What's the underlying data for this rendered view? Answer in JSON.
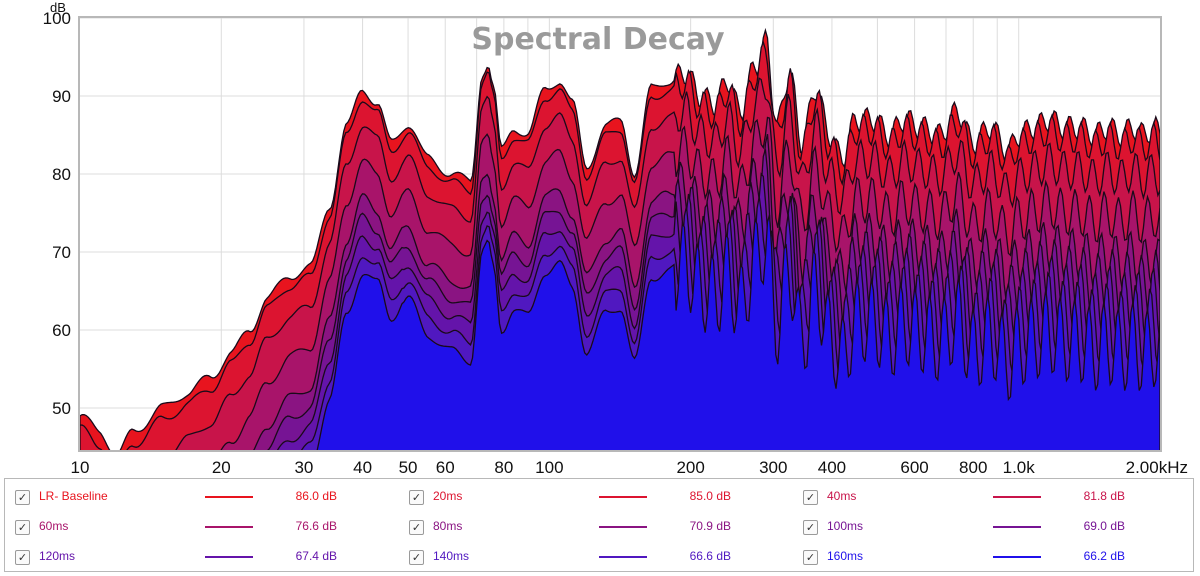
{
  "chart_data": {
    "type": "area",
    "title": "Spectral Decay",
    "ylabel": "dB",
    "y_ticks": [
      "100",
      "90",
      "80",
      "70",
      "60",
      "50"
    ],
    "ylim": [
      45,
      100
    ],
    "x_scale": "log",
    "xlim_hz": [
      10,
      2000
    ],
    "x_ticks": [
      {
        "label": "10",
        "hz": 10
      },
      {
        "label": "20",
        "hz": 20
      },
      {
        "label": "30",
        "hz": 30
      },
      {
        "label": "40",
        "hz": 40
      },
      {
        "label": "50",
        "hz": 50
      },
      {
        "label": "60",
        "hz": 60
      },
      {
        "label": "80",
        "hz": 80
      },
      {
        "label": "100",
        "hz": 100
      },
      {
        "label": "200",
        "hz": 200
      },
      {
        "label": "300",
        "hz": 300
      },
      {
        "label": "400",
        "hz": 400
      },
      {
        "label": "600",
        "hz": 600
      },
      {
        "label": "800",
        "hz": 800
      },
      {
        "label": "1.0k",
        "hz": 1000
      },
      {
        "label": "2.00kHz",
        "hz": 2000
      }
    ],
    "grid": true,
    "baseline_curve": [
      [
        10,
        49
      ],
      [
        11,
        47
      ],
      [
        12,
        44
      ],
      [
        13,
        47
      ],
      [
        15,
        50
      ],
      [
        17,
        52
      ],
      [
        19,
        54
      ],
      [
        21,
        57
      ],
      [
        23,
        60
      ],
      [
        25,
        64
      ],
      [
        28,
        67
      ],
      [
        31,
        68
      ],
      [
        34,
        76
      ],
      [
        37,
        86
      ],
      [
        40,
        91
      ],
      [
        43,
        89
      ],
      [
        46,
        84
      ],
      [
        50,
        86.5
      ],
      [
        55,
        82
      ],
      [
        62,
        80
      ],
      [
        68,
        79
      ],
      [
        72,
        93
      ],
      [
        74,
        94
      ],
      [
        76,
        91
      ],
      [
        79,
        83
      ],
      [
        84,
        86
      ],
      [
        90,
        85
      ],
      [
        98,
        91
      ],
      [
        105,
        92
      ],
      [
        112,
        89
      ],
      [
        120,
        81
      ],
      [
        132,
        86
      ],
      [
        142,
        87
      ],
      [
        152,
        80
      ],
      [
        165,
        91
      ],
      [
        180,
        92
      ],
      [
        195,
        93
      ],
      [
        210,
        90
      ],
      [
        225,
        89
      ],
      [
        240,
        92
      ],
      [
        255,
        88
      ],
      [
        275,
        94
      ],
      [
        290,
        97
      ],
      [
        305,
        86
      ],
      [
        325,
        93
      ],
      [
        345,
        84
      ],
      [
        370,
        91
      ],
      [
        395,
        85
      ],
      [
        420,
        82
      ],
      [
        450,
        87
      ],
      [
        490,
        87
      ],
      [
        530,
        85
      ],
      [
        570,
        87
      ],
      [
        620,
        86
      ],
      [
        680,
        85
      ],
      [
        740,
        88
      ],
      [
        800,
        84
      ],
      [
        870,
        86
      ],
      [
        950,
        83
      ],
      [
        1000,
        85
      ],
      [
        1080,
        86
      ],
      [
        1160,
        87
      ],
      [
        1250,
        86
      ],
      [
        1350,
        86
      ],
      [
        1450,
        85
      ],
      [
        1550,
        86
      ],
      [
        1650,
        85
      ],
      [
        1750,
        86
      ],
      [
        1850,
        85
      ],
      [
        1950,
        86
      ],
      [
        2000,
        85
      ]
    ],
    "series": [
      {
        "name": "LR- Baseline",
        "value": "86.0 dB",
        "color": "#e8141e"
      },
      {
        "name": "20ms",
        "value": "85.0 dB",
        "color": "#dc1430"
      },
      {
        "name": "40ms",
        "value": "81.8 dB",
        "color": "#c8144a"
      },
      {
        "name": "60ms",
        "value": "76.6 dB",
        "color": "#a8146a"
      },
      {
        "name": "80ms",
        "value": "70.9 dB",
        "color": "#8a1482"
      },
      {
        "name": "100ms",
        "value": "69.0 dB",
        "color": "#761494"
      },
      {
        "name": "120ms",
        "value": "67.4 dB",
        "color": "#6414aa"
      },
      {
        "name": "140ms",
        "value": "66.6 dB",
        "color": "#5018c0"
      },
      {
        "name": "160ms",
        "value": "66.2 dB",
        "color": "#2010ea"
      }
    ],
    "series_offsets_db": [
      0,
      1,
      4,
      8,
      12,
      14,
      16,
      18,
      20
    ]
  }
}
